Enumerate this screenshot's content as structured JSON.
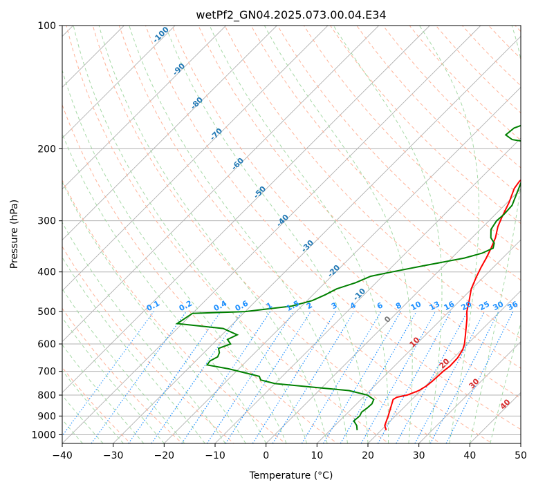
{
  "chart_data": {
    "type": "line",
    "title": "wetPf2_GN04.2025.073.00.04.E34",
    "xlabel": "Temperature (°C)",
    "ylabel": "Pressure (hPa)",
    "xlim": [
      -40,
      50
    ],
    "ylim": [
      1050,
      100
    ],
    "yscale": "log",
    "grid": true,
    "xticks": [
      "−40",
      "−30",
      "−20",
      "−10",
      "0",
      "10",
      "20",
      "30",
      "40",
      "50"
    ],
    "yticks": [
      {
        "p": 100,
        "label": "100"
      },
      {
        "p": 200,
        "label": "200"
      },
      {
        "p": 300,
        "label": "300"
      },
      {
        "p": 400,
        "label": "400"
      },
      {
        "p": 500,
        "label": "500"
      },
      {
        "p": 600,
        "label": "600"
      },
      {
        "p": 700,
        "label": "700"
      },
      {
        "p": 800,
        "label": "800"
      },
      {
        "p": 900,
        "label": "900"
      },
      {
        "p": 1000,
        "label": "1000"
      }
    ],
    "skew_deg": 45,
    "colors": {
      "temperature": "#ff0000",
      "dewpoint": "#008000",
      "isotherm": "#b0b0b0",
      "dry_adiabat": "#ffb399",
      "moist_adiabat": "#a6d9a6",
      "mixing_ratio": "#1e90ff",
      "boundary": "#d2b48c"
    },
    "series": [
      {
        "key": "temperature",
        "points": [
          [
            21,
            975
          ],
          [
            19.8,
            950
          ],
          [
            18.6,
            900
          ],
          [
            17.2,
            850
          ],
          [
            16.3,
            820
          ],
          [
            16.6,
            810
          ],
          [
            18.2,
            800
          ],
          [
            19.6,
            780
          ],
          [
            20.2,
            760
          ],
          [
            20.4,
            740
          ],
          [
            20.6,
            700
          ],
          [
            20.9,
            680
          ],
          [
            20.8,
            650
          ],
          [
            20.2,
            620
          ],
          [
            19.4,
            600
          ],
          [
            17.8,
            570
          ],
          [
            14.9,
            520
          ],
          [
            13.5,
            500
          ],
          [
            11.8,
            470
          ],
          [
            9.9,
            440
          ],
          [
            8.5,
            410
          ],
          [
            7.6,
            390
          ],
          [
            6.8,
            370
          ],
          [
            5.8,
            350
          ],
          [
            4.6,
            330
          ],
          [
            2.9,
            310
          ],
          [
            1.9,
            295
          ],
          [
            0.3,
            270
          ],
          [
            -1.4,
            250
          ],
          [
            -1.8,
            240
          ],
          [
            -1.3,
            225
          ],
          [
            -0.5,
            215
          ],
          [
            0.6,
            205
          ],
          [
            1.9,
            195
          ],
          [
            2.1,
            185
          ],
          [
            2.0,
            170
          ],
          [
            1.9,
            150
          ],
          [
            2.0,
            135
          ],
          [
            2.6,
            128
          ],
          [
            4.4,
            120
          ],
          [
            7.4,
            110
          ],
          [
            9.3,
            100
          ]
        ]
      },
      {
        "key": "dewpoint",
        "points": [
          [
            15.3,
            975
          ],
          [
            14.3,
            950
          ],
          [
            12.8,
            925
          ],
          [
            13.0,
            900
          ],
          [
            12.6,
            880
          ],
          [
            12.9,
            860
          ],
          [
            13.0,
            840
          ],
          [
            12.5,
            820
          ],
          [
            10.4,
            800
          ],
          [
            5.9,
            780
          ],
          [
            -10.0,
            750
          ],
          [
            -13.5,
            735
          ],
          [
            -14.5,
            720
          ],
          [
            -22.0,
            690
          ],
          [
            -27.0,
            675
          ],
          [
            -27.2,
            660
          ],
          [
            -26.5,
            645
          ],
          [
            -27.0,
            630
          ],
          [
            -28.0,
            615
          ],
          [
            -26.5,
            600
          ],
          [
            -28.0,
            585
          ],
          [
            -27.0,
            570
          ],
          [
            -31.0,
            550
          ],
          [
            -41.0,
            535
          ],
          [
            -40.0,
            505
          ],
          [
            -30.0,
            500
          ],
          [
            -22.0,
            485
          ],
          [
            -19.0,
            470
          ],
          [
            -17.6,
            455
          ],
          [
            -16.5,
            440
          ],
          [
            -14.0,
            425
          ],
          [
            -12.3,
            410
          ],
          [
            -9.0,
            400
          ],
          [
            -3.5,
            385
          ],
          [
            2.5,
            370
          ],
          [
            5.0,
            360
          ],
          [
            6.2,
            350
          ],
          [
            5.4,
            340
          ],
          [
            3.7,
            330
          ],
          [
            2.1,
            315
          ],
          [
            1.5,
            300
          ],
          [
            1.7,
            290
          ],
          [
            1.5,
            275
          ],
          [
            -0.1,
            255
          ],
          [
            -1.4,
            240
          ],
          [
            -1.5,
            225
          ],
          [
            -0.9,
            215
          ],
          [
            -1.2,
            205
          ],
          [
            -4.8,
            195
          ],
          [
            -11.4,
            190
          ],
          [
            -13.6,
            185
          ],
          [
            -13.3,
            178
          ],
          [
            -10.6,
            170
          ],
          [
            -7.4,
            160
          ],
          [
            -4.7,
            150
          ],
          [
            -2.2,
            140
          ],
          [
            -1.6,
            130
          ],
          [
            -1.3,
            120
          ],
          [
            -0.9,
            112
          ],
          [
            -0.1,
            106
          ],
          [
            0.9,
            100
          ]
        ]
      }
    ],
    "dry_adiabat_labels": [
      "-100",
      "-90",
      "-80",
      "-70",
      "-60",
      "-50",
      "-40",
      "-30",
      "-20",
      "-10"
    ],
    "moist_adiabat_labels": [
      "0",
      "10",
      "20",
      "30",
      "40"
    ],
    "mixing_ratio_labels": [
      "0.1",
      "0.2",
      "0.4",
      "0.6",
      "1",
      "1.5",
      "2",
      "3",
      "4",
      "6",
      "8",
      "10",
      "13",
      "16",
      "20",
      "25",
      "30",
      "36"
    ]
  }
}
